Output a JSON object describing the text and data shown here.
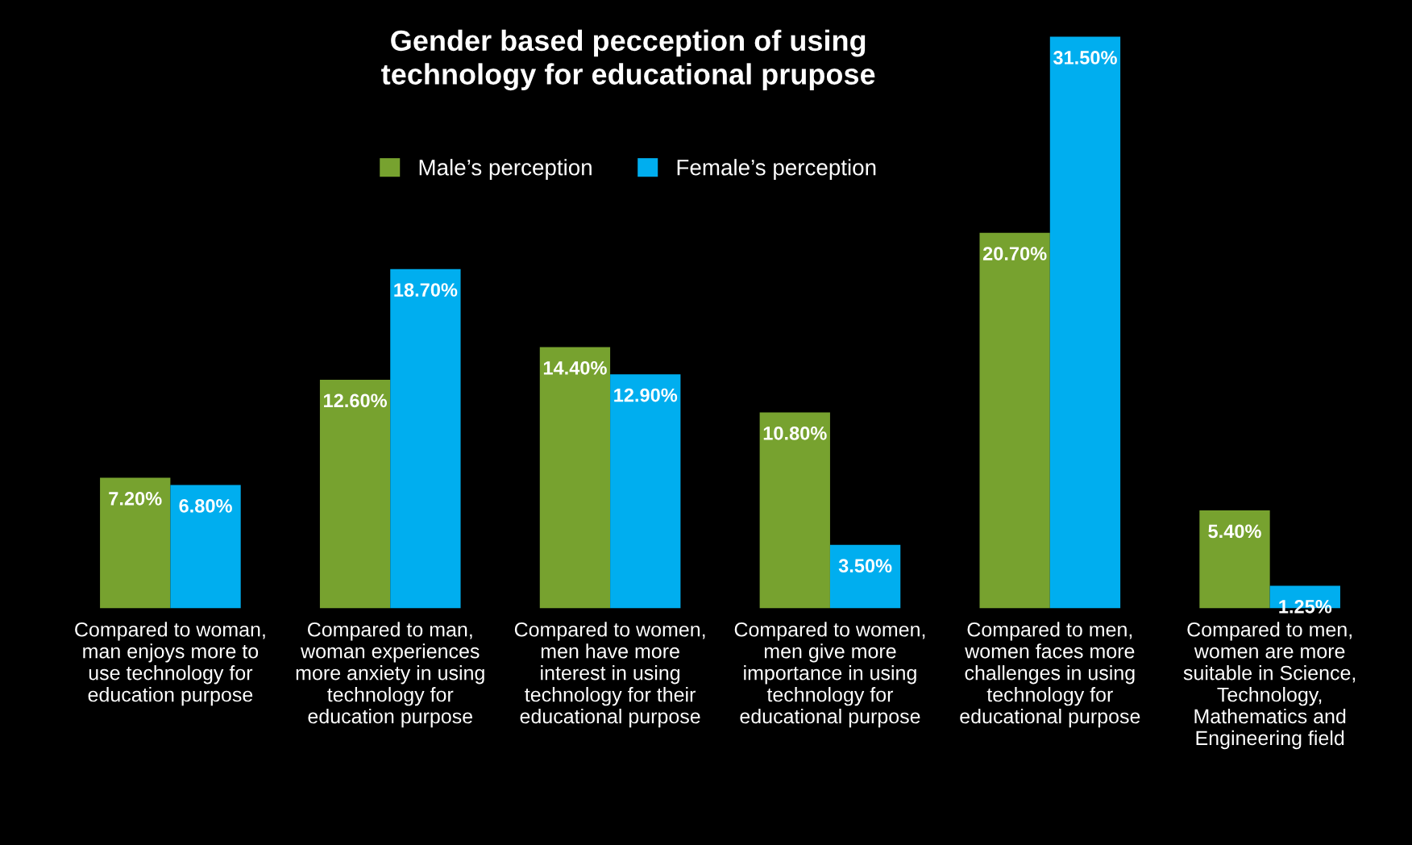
{
  "chart_data": {
    "type": "bar",
    "title": "Gender based pecception of using technology for educational prupose",
    "categories": [
      "Compared to woman, man enjoys more to use technology for education purpose",
      "Compared to man, woman experiences more anxiety in using technology for education purpose",
      "Compared to women, men have more interest in using technology for their educational purpose",
      "Compared to women, men give more importance in using technology for educational purpose",
      "Compared to men, women faces more challenges in using technology for educational purpose",
      "Compared to men, women are more suitable in Science, Technology, Mathematics and Engineering field"
    ],
    "series": [
      {
        "name": "Male’s perception",
        "color": "#77a22f",
        "values": [
          7.2,
          12.6,
          14.4,
          10.8,
          20.7,
          5.4
        ],
        "value_labels": [
          "7.20%",
          "12.60%",
          "14.40%",
          "10.80%",
          "20.70%",
          "5.40%"
        ]
      },
      {
        "name": "Female’s perception",
        "color": "#00aeef",
        "values": [
          6.8,
          18.7,
          12.9,
          3.5,
          31.5,
          1.25
        ],
        "value_labels": [
          "6.80%",
          "18.70%",
          "12.90%",
          "3.50%",
          "31.50%",
          "1.25%"
        ]
      }
    ],
    "legend": "top"
  }
}
